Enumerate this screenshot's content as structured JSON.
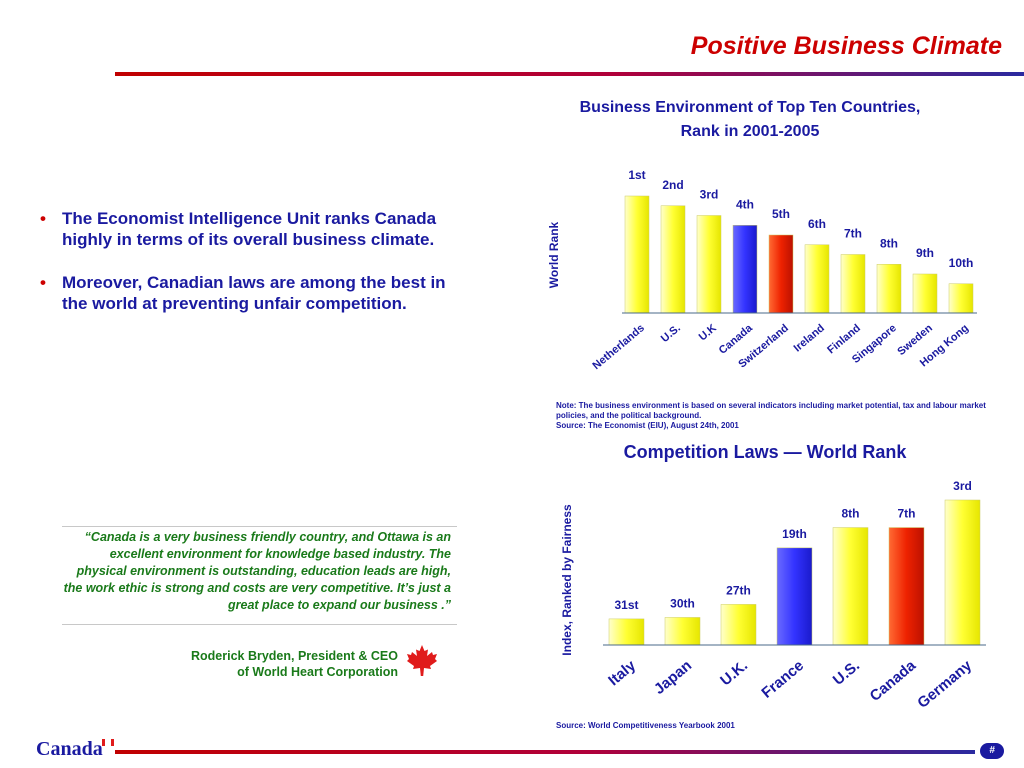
{
  "header": {
    "title": "Positive Business Climate"
  },
  "bullets": [
    "The Economist Intelligence Unit ranks Canada highly in terms of its overall business climate.",
    "Moreover, Canadian laws are among the best in the world at preventing unfair competition."
  ],
  "quote": {
    "text": "“Canada is a very business friendly country, and Ottawa is an excellent environment for knowledge based industry.  The physical environment is outstanding, education leads are high, the work ethic is strong and costs are very competitive.  It’s just a great place to expand our business .”",
    "author_line1": "Roderick Bryden, President & CEO",
    "author_line2": "of World Heart Corporation"
  },
  "footer": {
    "brand": "Canada",
    "page": "#"
  },
  "colors": {
    "yellow": "#ffff33",
    "blue": "#3333ff",
    "red": "#ee2200",
    "navy": "#1a1aa0",
    "title_red": "#cc0000"
  },
  "chart_data": [
    {
      "type": "bar",
      "title": "Business Environment of Top Ten Countries, Rank in 2001-2005",
      "ylabel": "World Rank",
      "categories": [
        "Netherlands",
        "U.S.",
        "U.K",
        "Canada",
        "Switzerland",
        "Ireland",
        "Finland",
        "Singapore",
        "Sweden",
        "Hong Kong"
      ],
      "values": [
        1,
        2,
        3,
        4,
        5,
        6,
        7,
        8,
        9,
        10
      ],
      "data_labels": [
        "1st",
        "2nd",
        "3rd",
        "4th",
        "5th",
        "6th",
        "7th",
        "8th",
        "9th",
        "10th"
      ],
      "bar_colors": [
        "yellow",
        "yellow",
        "yellow",
        "blue",
        "red",
        "yellow",
        "yellow",
        "yellow",
        "yellow",
        "yellow"
      ],
      "y_inverted": true,
      "ylim": [
        0,
        13
      ],
      "note": "Note:  The business environment is based on several indicators including market potential, tax and labour market policies, and the political background.",
      "source": "Source: The Economist (EIU), August 24th, 2001"
    },
    {
      "type": "bar",
      "title": "Competition Laws — World Rank",
      "ylabel": "Index, Ranked by Fairness",
      "categories": [
        "Italy",
        "Japan",
        "U.K.",
        "France",
        "U.S.",
        "Canada",
        "Germany"
      ],
      "values": [
        31,
        30,
        27,
        19,
        8,
        7,
        3
      ],
      "data_labels": [
        "31st",
        "30th",
        "27th",
        "19th",
        "8th",
        "7th",
        "3rd"
      ],
      "bar_colors": [
        "yellow",
        "yellow",
        "yellow",
        "blue",
        "yellow",
        "red",
        "yellow"
      ],
      "bar_index": [
        18,
        19,
        28,
        67,
        81,
        81,
        100
      ],
      "source": "Source:  World Competitiveness Yearbook 2001"
    }
  ]
}
